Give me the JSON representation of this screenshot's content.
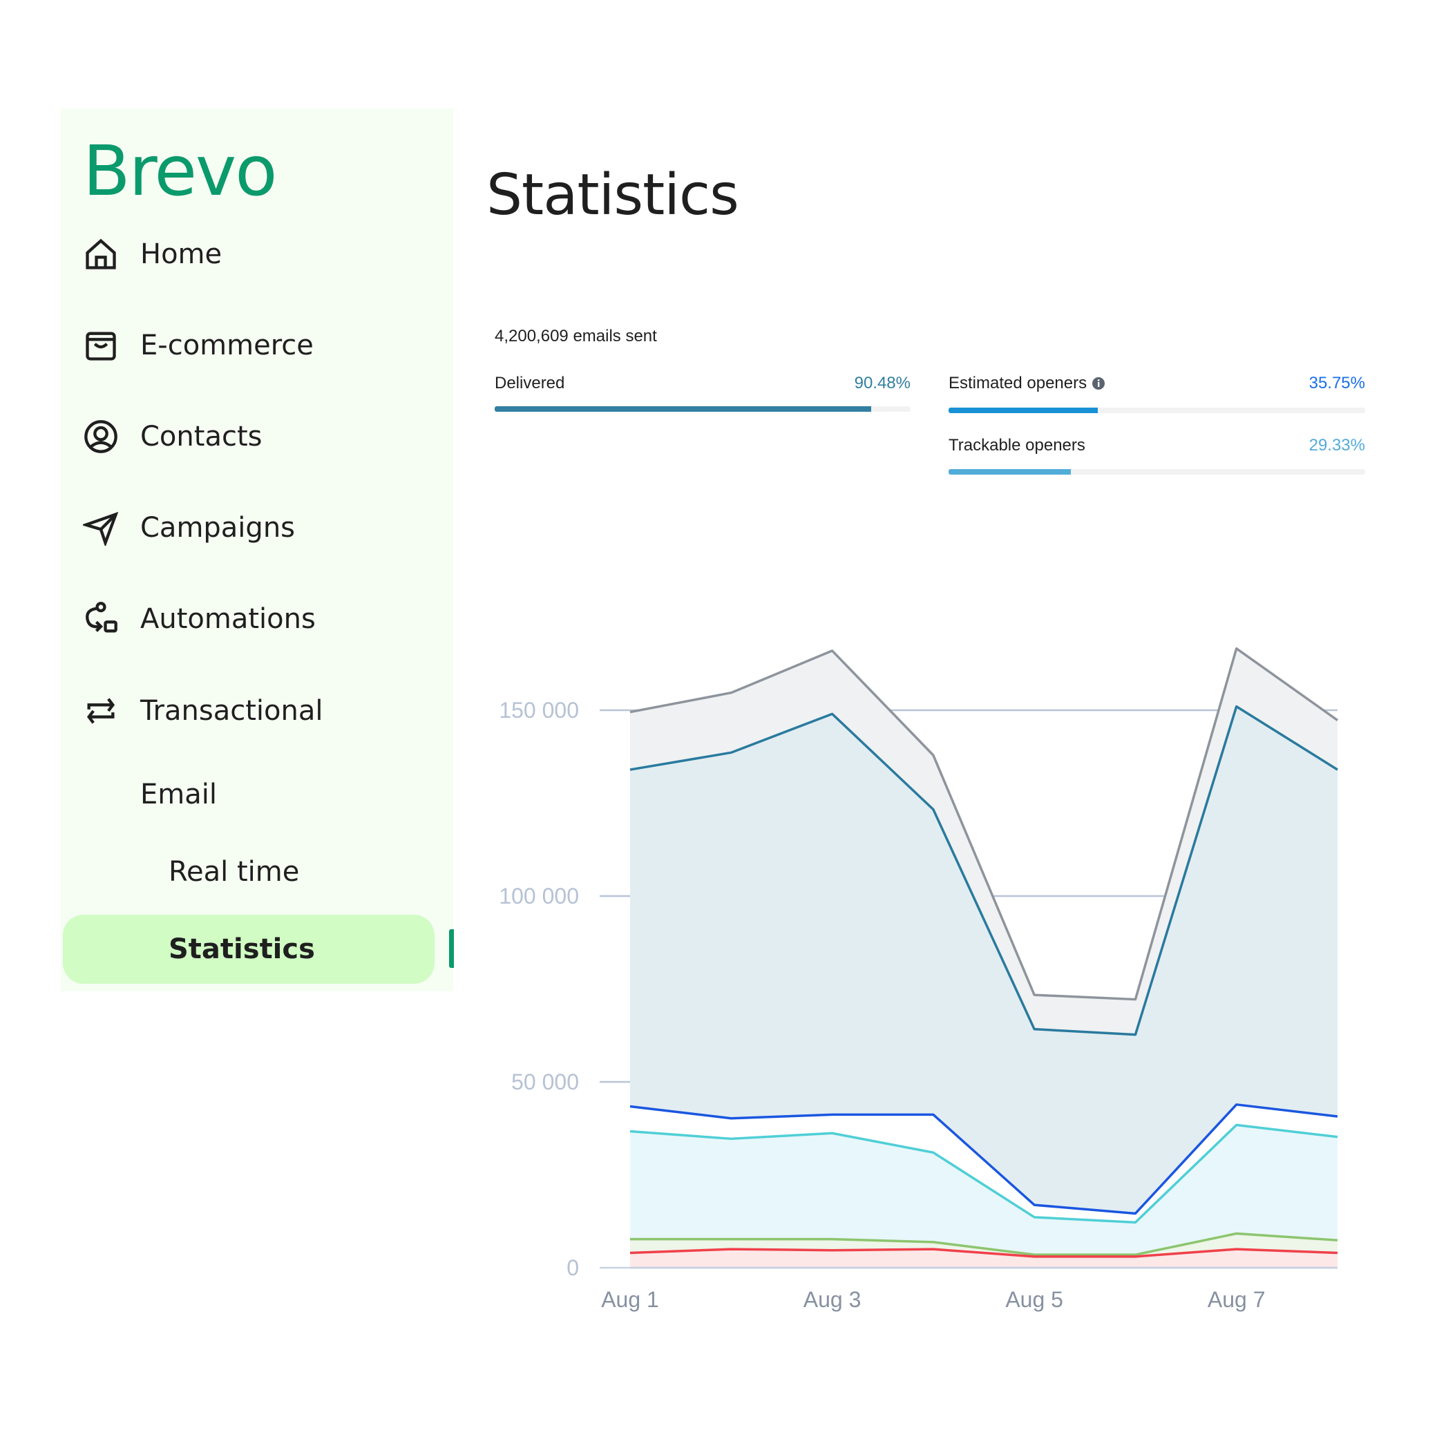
{
  "sidebar": {
    "logo": "Brevo",
    "items": [
      {
        "label": "Home",
        "icon": "home-icon"
      },
      {
        "label": "E-commerce",
        "icon": "shopping-bag-icon"
      },
      {
        "label": "Contacts",
        "icon": "user-circle-icon"
      },
      {
        "label": "Campaigns",
        "icon": "paper-plane-icon"
      },
      {
        "label": "Automations",
        "icon": "workflow-icon"
      },
      {
        "label": "Transactional",
        "icon": "arrows-swap-icon"
      }
    ],
    "email": "Email",
    "real_time": "Real time",
    "statistics": "Statistics"
  },
  "page": {
    "title": "Statistics"
  },
  "summary": {
    "sent": "4,200,609 emails sent",
    "delivered": {
      "label": "Delivered",
      "value": "90.48%",
      "fraction": 0.9048,
      "color": "#327fa1"
    },
    "estimated": {
      "label": "Estimated openers",
      "value": "35.75%",
      "fraction": 0.3575,
      "color": "#1891d4",
      "text_color": "#1a6ee8"
    },
    "trackable": {
      "label": "Trackable openers",
      "value": "29.33%",
      "fraction": 0.2933,
      "color": "#52acd8"
    }
  },
  "chart_data": {
    "type": "area",
    "x": [
      "Aug 1",
      "Aug 2",
      "Aug 3",
      "Aug 4",
      "Aug 5",
      "Aug 6",
      "Aug 7",
      "Aug 8"
    ],
    "xticks": [
      "Aug 1",
      "Aug 3",
      "Aug 5",
      "Aug 7"
    ],
    "yticks": [
      "0",
      "50 000",
      "100 000",
      "150 000"
    ],
    "ylim": [
      0,
      170000
    ],
    "grid": true,
    "series": [
      {
        "values": [
          149500,
          154700,
          166000,
          137900,
          73400,
          72200,
          166600,
          147300
        ],
        "line": "#8e949c",
        "fill": "#eff1f3"
      },
      {
        "values": [
          134000,
          138600,
          149000,
          123300,
          64200,
          62700,
          151000,
          134000
        ],
        "line": "#2a7a9e",
        "fill": "#e2edf2"
      },
      {
        "values": [
          43400,
          40200,
          41200,
          41200,
          16900,
          14600,
          43900,
          40700
        ],
        "line": "#1a56e0",
        "fill": "#ffffff"
      },
      {
        "values": [
          36700,
          34700,
          36200,
          31000,
          13600,
          12200,
          38400,
          35200
        ],
        "line": "#4fcfd6",
        "fill": "#e8f7fb"
      },
      {
        "values": [
          7700,
          7700,
          7700,
          6900,
          3500,
          3500,
          9200,
          7400
        ],
        "line": "#8cc56e",
        "fill": "#eef5e9"
      },
      {
        "values": [
          4000,
          5000,
          4700,
          5000,
          3000,
          3000,
          5000,
          4000
        ],
        "line": "#f0404a",
        "fill": "#fde8e8"
      }
    ]
  }
}
